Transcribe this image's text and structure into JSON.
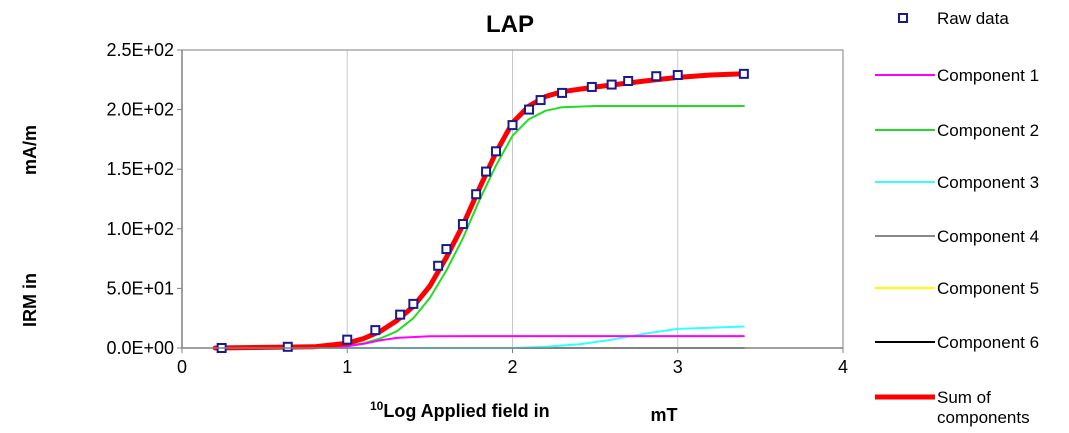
{
  "chart_data": {
    "type": "line",
    "title": "LAP",
    "xlabel": {
      "sup": "10",
      "text": "Log Applied field in",
      "unit": "mT"
    },
    "ylabel": {
      "text": "IRM in",
      "unit": "mA/m"
    },
    "xlim": [
      0,
      4
    ],
    "ylim": [
      0,
      250
    ],
    "x_ticks": [
      0,
      1,
      2,
      3,
      4
    ],
    "x_tick_labels": [
      "0",
      "1",
      "2",
      "3",
      "4"
    ],
    "y_ticks": [
      0,
      50,
      100,
      150,
      200,
      250
    ],
    "y_tick_labels": [
      "0.0E+00",
      "5.0E+01",
      "1.0E+02",
      "1.5E+02",
      "2.0E+02",
      "2.5E+02"
    ],
    "grid": "vertical",
    "legend_position": "right",
    "raw_data": {
      "name": "Raw data",
      "color": "#1a1a8c",
      "x": [
        0.24,
        0.64,
        1.0,
        1.17,
        1.32,
        1.4,
        1.55,
        1.6,
        1.7,
        1.78,
        1.84,
        1.9,
        2.0,
        2.1,
        2.17,
        2.3,
        2.48,
        2.6,
        2.7,
        2.87,
        3.0,
        3.4
      ],
      "y": [
        0,
        1,
        7,
        15,
        28,
        37,
        69,
        83,
        104,
        129,
        148,
        165,
        187,
        200,
        208,
        214,
        219,
        221,
        224,
        228,
        229,
        230
      ]
    },
    "series": [
      {
        "name": "Component 1",
        "color": "#ff00ff",
        "x": [
          0.2,
          0.8,
          1.0,
          1.1,
          1.2,
          1.3,
          1.5,
          1.8,
          2.2,
          3.4
        ],
        "y": [
          0,
          0.3,
          1.5,
          3.5,
          6.5,
          8.5,
          9.8,
          10,
          10,
          10
        ]
      },
      {
        "name": "Component 2",
        "color": "#22dd22",
        "x": [
          0.2,
          0.8,
          1.0,
          1.1,
          1.2,
          1.3,
          1.4,
          1.5,
          1.6,
          1.7,
          1.8,
          1.9,
          2.0,
          2.1,
          2.2,
          2.3,
          2.5,
          2.8,
          3.4
        ],
        "y": [
          0,
          0.5,
          2,
          4,
          8,
          14,
          25,
          42,
          65,
          92,
          124,
          153,
          178,
          192,
          199,
          202,
          203,
          203,
          203
        ]
      },
      {
        "name": "Component 3",
        "color": "#33ffff",
        "x": [
          0.2,
          2.0,
          2.2,
          2.4,
          2.6,
          2.8,
          3.0,
          3.2,
          3.4
        ],
        "y": [
          0,
          0,
          1,
          3,
          7,
          12,
          16,
          17,
          18
        ]
      },
      {
        "name": "Component 4",
        "color": "#888888",
        "x": [
          0.2,
          3.4
        ],
        "y": [
          0,
          0
        ]
      },
      {
        "name": "Component 5",
        "color": "#ffff00",
        "x": [
          0.2,
          3.4
        ],
        "y": [
          0,
          0
        ]
      },
      {
        "name": "Component 6",
        "color": "#000000",
        "x": [
          0.2,
          3.4
        ],
        "y": [
          0,
          0
        ]
      },
      {
        "name": "Sum of components",
        "color": "#ff0000",
        "x": [
          0.2,
          0.8,
          1.0,
          1.1,
          1.2,
          1.3,
          1.4,
          1.5,
          1.6,
          1.7,
          1.8,
          1.9,
          2.0,
          2.1,
          2.2,
          2.3,
          2.5,
          2.8,
          3.0,
          3.2,
          3.4
        ],
        "y": [
          0,
          1,
          4,
          8,
          14,
          23,
          35,
          52,
          76,
          103,
          134,
          164,
          189,
          203,
          211,
          215,
          219,
          224,
          227,
          229,
          230
        ]
      }
    ]
  }
}
